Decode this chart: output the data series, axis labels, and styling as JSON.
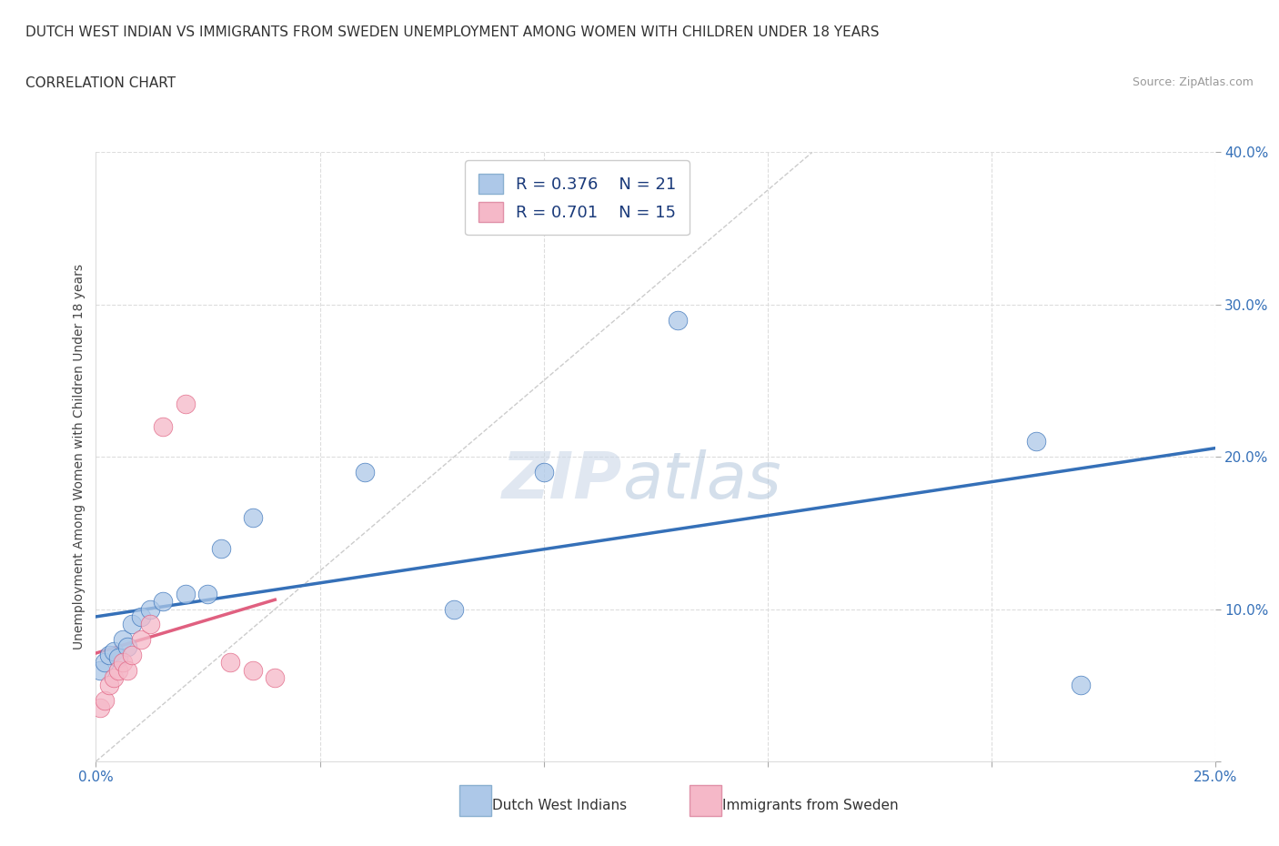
{
  "title_line1": "DUTCH WEST INDIAN VS IMMIGRANTS FROM SWEDEN UNEMPLOYMENT AMONG WOMEN WITH CHILDREN UNDER 18 YEARS",
  "title_line2": "CORRELATION CHART",
  "source": "Source: ZipAtlas.com",
  "ylabel": "Unemployment Among Women with Children Under 18 years",
  "xlim": [
    0.0,
    0.25
  ],
  "ylim": [
    0.0,
    0.4
  ],
  "blue_R": 0.376,
  "blue_N": 21,
  "pink_R": 0.701,
  "pink_N": 15,
  "blue_color": "#adc8e8",
  "pink_color": "#f5b8c8",
  "blue_line_color": "#3570b8",
  "pink_line_color": "#e06080",
  "diagonal_color": "#cccccc",
  "blue_dots_x": [
    0.001,
    0.002,
    0.003,
    0.004,
    0.005,
    0.006,
    0.007,
    0.008,
    0.01,
    0.012,
    0.015,
    0.02,
    0.025,
    0.028,
    0.035,
    0.06,
    0.08,
    0.1,
    0.13,
    0.21,
    0.22
  ],
  "blue_dots_y": [
    0.06,
    0.065,
    0.07,
    0.072,
    0.068,
    0.08,
    0.075,
    0.09,
    0.095,
    0.1,
    0.105,
    0.11,
    0.11,
    0.14,
    0.16,
    0.19,
    0.1,
    0.19,
    0.29,
    0.21,
    0.05
  ],
  "pink_dots_x": [
    0.001,
    0.002,
    0.003,
    0.004,
    0.005,
    0.006,
    0.007,
    0.008,
    0.01,
    0.012,
    0.015,
    0.02,
    0.03,
    0.035,
    0.04
  ],
  "pink_dots_y": [
    0.035,
    0.04,
    0.05,
    0.055,
    0.06,
    0.065,
    0.06,
    0.07,
    0.08,
    0.09,
    0.22,
    0.235,
    0.065,
    0.06,
    0.055
  ],
  "background_color": "#ffffff",
  "grid_color": "#dddddd"
}
